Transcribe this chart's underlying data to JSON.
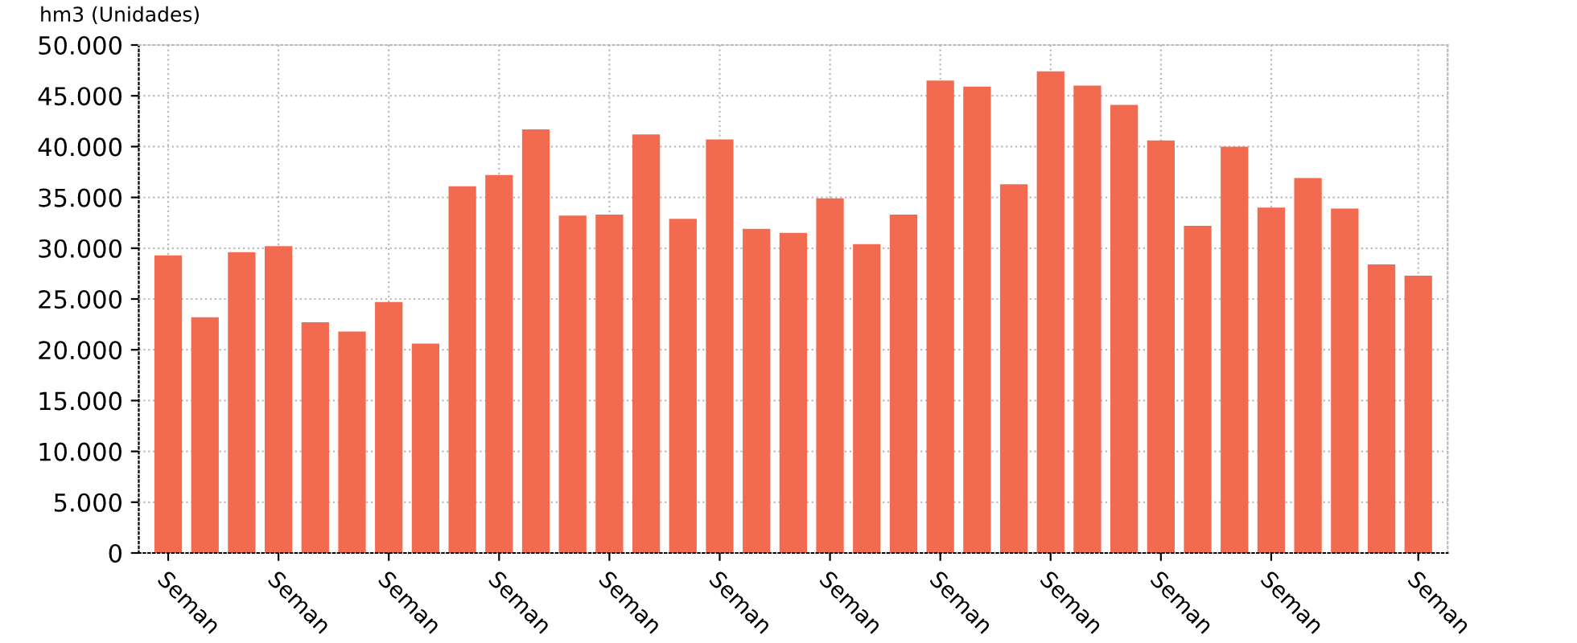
{
  "chart_data": {
    "type": "bar",
    "ylabel": "hm3 (Unidades)",
    "categories": [
      "Seman",
      null,
      null,
      "Seman",
      null,
      null,
      "Seman",
      null,
      null,
      "Seman",
      null,
      null,
      "Seman",
      null,
      null,
      "Seman",
      null,
      null,
      "Seman",
      null,
      null,
      "Seman",
      null,
      null,
      "Seman",
      null,
      null,
      "Seman",
      null,
      null,
      "Seman",
      null,
      null,
      null,
      "Seman"
    ],
    "values": [
      29300,
      23200,
      29600,
      30200,
      22700,
      21800,
      24700,
      20600,
      36100,
      37200,
      41700,
      33200,
      33300,
      41200,
      32900,
      40700,
      31900,
      31500,
      34900,
      30400,
      33300,
      46500,
      45900,
      36300,
      47400,
      46000,
      44100,
      40600,
      32200,
      40000,
      34000,
      36900,
      33900,
      28400,
      27300
    ],
    "color": "#f26b50",
    "ylim": [
      0,
      50000
    ],
    "yticks": [
      {
        "value": 0,
        "label": "0"
      },
      {
        "value": 5000,
        "label": "5.000"
      },
      {
        "value": 10000,
        "label": "10.000"
      },
      {
        "value": 15000,
        "label": "15.000"
      },
      {
        "value": 20000,
        "label": "20.000"
      },
      {
        "value": 25000,
        "label": "25.000"
      },
      {
        "value": 30000,
        "label": "30.000"
      },
      {
        "value": 35000,
        "label": "35.000"
      },
      {
        "value": 40000,
        "label": "40.000"
      },
      {
        "value": 45000,
        "label": "45.000"
      },
      {
        "value": 50000,
        "label": "50.000"
      }
    ],
    "grid": true
  }
}
